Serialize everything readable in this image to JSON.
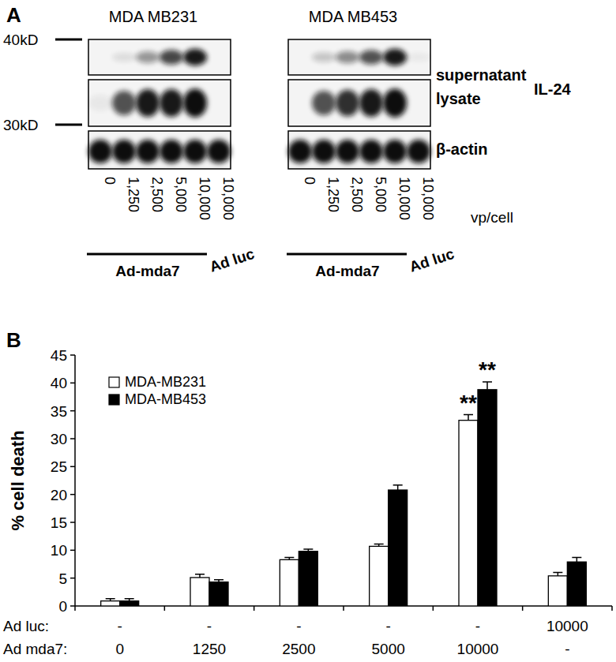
{
  "panel_labels": [
    "A",
    "B"
  ],
  "blot": {
    "panels": [
      {
        "title": "MDA MB231",
        "intensities": [
          [
            0,
            0.1,
            0.4,
            0.75,
            0.95,
            0
          ],
          [
            0.05,
            0.7,
            0.95,
            0.95,
            1,
            0
          ],
          [
            1,
            1,
            1,
            1,
            1,
            1
          ]
        ]
      },
      {
        "title": "MDA MB453",
        "intensities": [
          [
            0,
            0.2,
            0.45,
            0.7,
            0.95,
            0.05
          ],
          [
            0,
            0.7,
            0.85,
            0.95,
            1,
            0
          ],
          [
            1,
            1,
            1,
            1,
            1,
            1
          ]
        ]
      }
    ],
    "row_labels": [
      "supernatant",
      "lysate",
      "β-actin"
    ],
    "protein_label": "IL-24",
    "markers": [
      "40kD",
      "30kD"
    ],
    "lanes": [
      "0",
      "1,250",
      "2,500",
      "5,000",
      "10,000",
      "10,000"
    ],
    "lane_unit": "vp/cell",
    "groups": [
      "Ad-mda7",
      "Ad luc"
    ]
  },
  "chart_data": {
    "type": "bar",
    "y_label": "% cell death",
    "categories": [
      "0",
      "1250",
      "2500",
      "5000",
      "10000",
      "-"
    ],
    "category_label": "Ad mda7:",
    "secondary_categories": [
      "-",
      "-",
      "-",
      "-",
      "-",
      "10000"
    ],
    "secondary_category_label": "Ad luc:",
    "series": [
      {
        "name": "MDA-MB231",
        "color": "#ffffff",
        "values": [
          0.9,
          5.1,
          8.3,
          10.7,
          33.3,
          5.4
        ],
        "errors": [
          0.4,
          0.6,
          0.4,
          0.4,
          1.0,
          0.6
        ],
        "significance": [
          null,
          null,
          null,
          null,
          "**",
          null
        ]
      },
      {
        "name": "MDA-MB453",
        "color": "#000000",
        "values": [
          0.9,
          4.3,
          9.8,
          20.8,
          38.8,
          7.9
        ],
        "errors": [
          0.4,
          0.4,
          0.4,
          0.9,
          1.4,
          0.8
        ],
        "significance": [
          null,
          null,
          null,
          null,
          "**",
          null
        ]
      }
    ],
    "ylim": [
      0,
      45
    ],
    "yticks": [
      0,
      5,
      10,
      15,
      20,
      25,
      30,
      35,
      40,
      45
    ],
    "grid": false,
    "legend": "top-left"
  }
}
